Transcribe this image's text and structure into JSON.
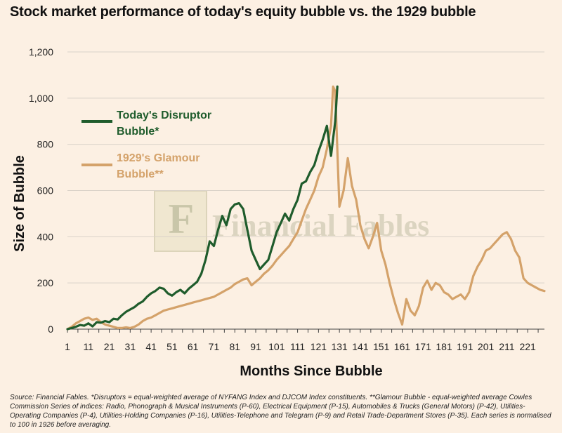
{
  "title": "Stock market performance of today's equity bubble vs. the 1929 bubble",
  "watermark": "Financial Fables",
  "source_note": "Source: Financial Fables.  *Disruptors = equal-weighted average of NYFANG Index and DJCOM Index constituents.  **Glamour Bubble - equal-weighted average Cowles Commission Series of indices: Radio, Phonograph & Musical Instruments (P-60), Electrical Equipment (P-15), Automobiles & Trucks (General Motors) (P-42), Utilities-Operating Companies (P-4), Utilities-Holding Companies (P-16), Utilities-Telephone and Telegram (P-9) and Retail Trade-Department Stores (P-35). Each series is normalised to 100 in 1926 before averaging.",
  "colors": {
    "today": "#1f5c2c",
    "glamour": "#d4a26a",
    "background": "#fcf0e3",
    "grid": "#d9d2c8"
  },
  "chart_data": {
    "type": "line",
    "title": "Stock market performance of today's equity bubble vs. the 1929 bubble",
    "xlabel": "Months Since Bubble",
    "ylabel": "Size of Bubble",
    "xlim": [
      1,
      229
    ],
    "ylim": [
      0,
      1200
    ],
    "grid": true,
    "legend_position": "top-left",
    "x_ticks": [
      "1",
      "11",
      "21",
      "31",
      "41",
      "51",
      "61",
      "71",
      "81",
      "91",
      "101",
      "111",
      "121",
      "131",
      "141",
      "151",
      "161",
      "171",
      "181",
      "191",
      "201",
      "211",
      "221"
    ],
    "y_ticks": [
      "0",
      "200",
      "400",
      "600",
      "800",
      "1,000",
      "1,200"
    ],
    "series": [
      {
        "name": "Today's Disruptor Bubble*",
        "color": "#1f5c2c",
        "x": [
          1,
          3,
          5,
          7,
          9,
          11,
          13,
          15,
          17,
          19,
          21,
          23,
          25,
          27,
          29,
          31,
          33,
          35,
          37,
          39,
          41,
          43,
          45,
          47,
          49,
          51,
          53,
          55,
          57,
          59,
          61,
          63,
          65,
          67,
          69,
          71,
          73,
          75,
          77,
          79,
          81,
          83,
          85,
          87,
          89,
          91,
          93,
          95,
          97,
          99,
          101,
          103,
          105,
          107,
          109,
          111,
          113,
          115,
          117,
          119,
          121,
          123,
          125,
          127,
          129,
          130
        ],
        "y": [
          0,
          5,
          10,
          18,
          15,
          25,
          12,
          30,
          28,
          35,
          30,
          45,
          42,
          60,
          75,
          85,
          95,
          110,
          120,
          140,
          155,
          165,
          180,
          175,
          155,
          145,
          160,
          170,
          155,
          175,
          190,
          205,
          240,
          300,
          380,
          360,
          430,
          490,
          450,
          520,
          540,
          545,
          520,
          430,
          340,
          300,
          260,
          280,
          300,
          360,
          420,
          460,
          500,
          470,
          520,
          560,
          630,
          640,
          680,
          710,
          770,
          820,
          880,
          750,
          900,
          1050
        ]
      },
      {
        "name": "1929's Glamour Bubble**",
        "color": "#d4a26a",
        "x": [
          1,
          3,
          5,
          7,
          9,
          11,
          13,
          15,
          17,
          19,
          21,
          23,
          25,
          27,
          29,
          31,
          33,
          35,
          37,
          39,
          41,
          43,
          45,
          47,
          49,
          51,
          53,
          55,
          57,
          59,
          61,
          63,
          65,
          67,
          69,
          71,
          73,
          75,
          77,
          79,
          81,
          83,
          85,
          87,
          89,
          91,
          93,
          95,
          97,
          99,
          101,
          103,
          105,
          107,
          109,
          111,
          113,
          115,
          117,
          119,
          121,
          123,
          125,
          127,
          128,
          129,
          131,
          133,
          135,
          137,
          139,
          141,
          143,
          145,
          147,
          149,
          151,
          153,
          155,
          157,
          159,
          161,
          163,
          165,
          167,
          169,
          171,
          173,
          175,
          177,
          179,
          181,
          183,
          185,
          187,
          189,
          191,
          193,
          195,
          197,
          199,
          201,
          203,
          205,
          207,
          209,
          211,
          213,
          215,
          217,
          219,
          221,
          223,
          225,
          227,
          229
        ],
        "y": [
          0,
          10,
          25,
          35,
          45,
          50,
          40,
          45,
          30,
          20,
          15,
          10,
          5,
          5,
          8,
          5,
          10,
          20,
          35,
          45,
          50,
          60,
          70,
          80,
          85,
          90,
          95,
          100,
          105,
          110,
          115,
          120,
          125,
          130,
          135,
          140,
          150,
          160,
          170,
          180,
          195,
          205,
          215,
          220,
          190,
          205,
          220,
          240,
          255,
          275,
          300,
          320,
          340,
          360,
          390,
          420,
          470,
          520,
          560,
          600,
          660,
          700,
          780,
          880,
          1050,
          1030,
          530,
          600,
          740,
          620,
          560,
          450,
          390,
          350,
          400,
          460,
          340,
          280,
          200,
          130,
          70,
          20,
          130,
          80,
          60,
          100,
          180,
          210,
          170,
          200,
          190,
          160,
          150,
          130,
          140,
          150,
          130,
          160,
          230,
          270,
          300,
          340,
          350,
          370,
          390,
          410,
          420,
          390,
          340,
          310,
          220,
          200,
          190,
          180,
          170,
          165
        ]
      }
    ]
  }
}
